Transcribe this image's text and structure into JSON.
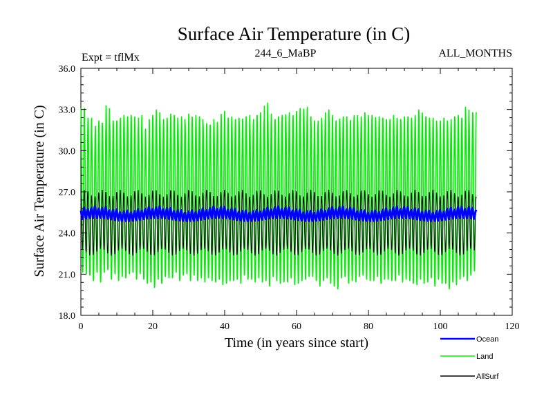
{
  "chart_data": {
    "type": "line",
    "title": "Surface Air Temperature (in C)",
    "subtitle_left": "Expt = tflMx",
    "subtitle_center": "244_6_MaBP",
    "subtitle_right": "ALL_MONTHS",
    "xlabel": "Time (in years since start)",
    "ylabel": "Surface Air Temperature (in C)",
    "xlim": [
      0,
      120
    ],
    "ylim": [
      18.0,
      36.0
    ],
    "xticks": [
      0,
      20,
      40,
      60,
      80,
      100,
      120
    ],
    "xtick_labels": [
      "0",
      "20",
      "40",
      "60",
      "80",
      "100",
      "120"
    ],
    "yticks": [
      18.0,
      21.0,
      24.0,
      27.0,
      30.0,
      33.0,
      36.0
    ],
    "ytick_labels": [
      "18.0",
      "21.0",
      "24.0",
      "27.0",
      "30.0",
      "33.0",
      "36.0"
    ],
    "x_end": 110,
    "legend_position": "bottom-right",
    "series": [
      {
        "name": "Ocean",
        "color": "#0000ff",
        "stroke": 3,
        "seasonal_min": 24.9,
        "seasonal_max": 25.8
      },
      {
        "name": "Land",
        "color": "#00ee00",
        "stroke": 1.6,
        "annual_max": [
          33.1,
          32.3,
          32.4,
          31.3,
          32.0,
          32.2,
          32.0,
          33.3,
          32.1,
          32.2,
          32.3,
          32.6,
          32.5,
          32.6,
          32.5,
          31.8,
          32.6,
          31.6,
          31.0,
          32.5,
          32.6,
          33.0,
          32.2,
          32.3,
          32.4,
          32.7,
          32.6,
          32.1,
          32.5,
          32.0,
          32.7,
          32.2,
          32.6,
          32.5,
          31.9,
          32.0,
          31.9,
          32.3,
          32.0,
          32.9,
          32.4,
          32.5,
          32.3,
          32.4,
          32.3,
          32.5,
          32.6,
          32.1,
          32.5,
          32.8,
          32.3,
          33.5,
          32.7,
          32.2,
          32.5,
          32.6,
          32.6,
          32.8,
          32.3,
          32.8,
          33.1,
          33.0,
          33.2,
          32.5,
          32.2,
          32.0,
          32.4,
          32.3,
          33.0,
          32.6,
          32.2,
          32.3,
          32.5,
          32.5,
          32.2,
          32.4,
          32.8,
          32.3,
          32.5,
          32.8,
          32.4,
          32.6,
          32.4,
          32.5,
          32.4,
          32.3,
          32.3,
          32.6,
          32.3,
          32.3,
          32.5,
          32.5,
          32.4,
          32.6,
          33.0,
          32.6,
          32.5,
          32.4,
          32.4,
          31.8,
          32.2,
          32.4,
          32.1,
          32.3,
          32.5,
          32.6,
          32.3,
          33.2,
          32.2,
          32.8
        ],
        "annual_min": [
          21.1,
          21.0,
          20.9,
          20.5,
          21.1,
          20.4,
          21.1,
          21.3,
          20.6,
          21.0,
          20.5,
          20.8,
          20.7,
          21.0,
          21.1,
          20.6,
          21.0,
          20.6,
          20.3,
          20.4,
          20.0,
          20.6,
          20.3,
          20.8,
          20.7,
          20.7,
          21.1,
          20.5,
          20.9,
          21.0,
          20.5,
          20.9,
          20.5,
          20.7,
          20.4,
          20.7,
          20.5,
          20.4,
          20.6,
          20.2,
          20.3,
          20.5,
          20.5,
          20.6,
          20.3,
          20.9,
          20.6,
          20.6,
          20.4,
          20.7,
          20.4,
          20.5,
          20.1,
          20.8,
          20.5,
          20.3,
          20.4,
          20.4,
          20.7,
          20.2,
          20.3,
          20.5,
          20.6,
          20.8,
          20.8,
          20.5,
          20.1,
          20.5,
          20.7,
          20.3,
          20.1,
          19.9,
          20.7,
          20.8,
          20.3,
          20.5,
          20.4,
          20.8,
          20.9,
          20.6,
          20.5,
          20.5,
          20.8,
          20.3,
          20.6,
          20.6,
          20.5,
          20.5,
          20.9,
          20.4,
          20.6,
          20.5,
          20.3,
          20.2,
          20.6,
          20.3,
          20.4,
          20.7,
          20.1,
          20.6,
          20.3,
          20.3,
          19.9,
          20.4,
          20.2,
          20.6,
          20.8,
          20.5,
          20.9,
          21.2
        ]
      },
      {
        "name": "AllSurf",
        "color": "#000000",
        "stroke": 1,
        "seasonal_min": 22.6,
        "seasonal_max": 26.9
      }
    ]
  }
}
